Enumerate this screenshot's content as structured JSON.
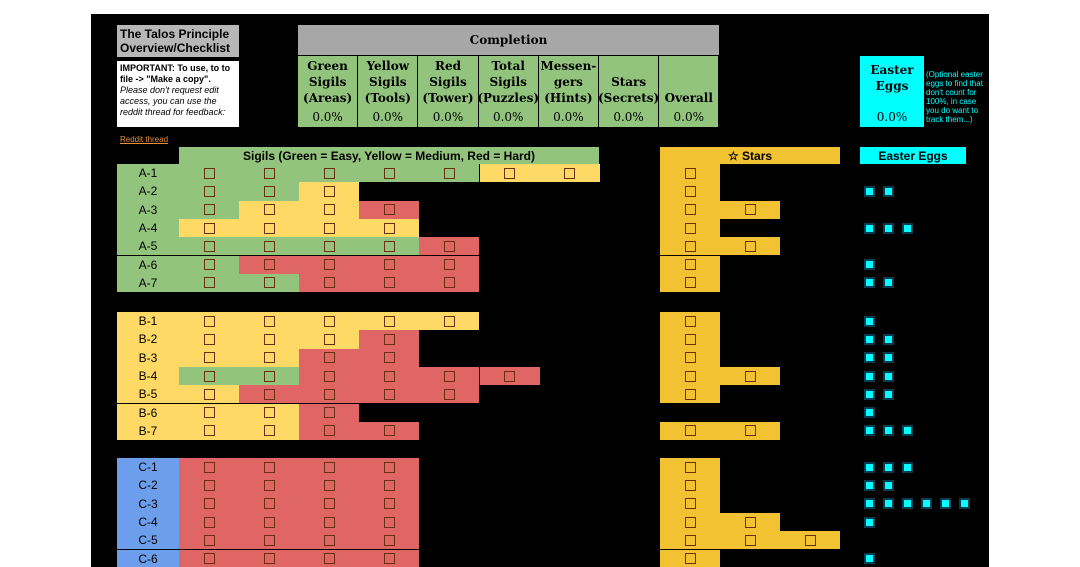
{
  "title": "The Talos Principle Overview/Checklist",
  "note": {
    "bold": "IMPORTANT: To use, to to file -> \"Make a copy\".",
    "italic": "Please don't request edit access, you can use the reddit thread for feedback:"
  },
  "reddit_link": "Reddit thread",
  "completion": {
    "header": "Completion",
    "columns": [
      {
        "line1": "Green",
        "line2": "Sigils",
        "line3": "(Areas)",
        "pct": "0.0%"
      },
      {
        "line1": "Yellow",
        "line2": "Sigils",
        "line3": "(Tools)",
        "pct": "0.0%"
      },
      {
        "line1": "Red",
        "line2": "Sigils",
        "line3": "(Tower)",
        "pct": "0.0%"
      },
      {
        "line1": "Total",
        "line2": "Sigils",
        "line3": "(Puzzles)",
        "pct": "0.0%"
      },
      {
        "line1": "Messen-",
        "line2": "gers",
        "line3": "(Hints)",
        "pct": "0.0%"
      },
      {
        "line1": "",
        "line2": "Stars",
        "line3": "(Secrets)",
        "pct": "0.0%"
      },
      {
        "line1": "",
        "line2": "",
        "line3": "Overall",
        "pct": "0.0%"
      }
    ]
  },
  "easter": {
    "line1": "Easter",
    "line2": "Eggs",
    "pct": "0.0%",
    "note": "(Optional easter eggs to find that don't count for 100%, in case you do want to track them...)"
  },
  "sections": {
    "sigils_header": "Sigils (Green = Easy, Yellow = Medium, Red = Hard)",
    "stars_header": "☆ Stars",
    "eggs_header": "Easter Eggs"
  },
  "colors": {
    "green": "#93c47d",
    "yellow": "#ffd966",
    "red": "#e06666",
    "gold": "#f1c232",
    "cyan": "#00ffff",
    "blue": "#6d9eeb"
  },
  "rows": [
    {
      "label": "A-1",
      "sigils": [
        "G",
        "G",
        "G",
        "G",
        "G",
        "Y",
        "Y"
      ],
      "stars": 1,
      "eggs": 0
    },
    {
      "label": "A-2",
      "sigils": [
        "G",
        "G",
        "Y"
      ],
      "stars": 1,
      "eggs": 2
    },
    {
      "label": "A-3",
      "sigils": [
        "G",
        "Y",
        "Y",
        "R"
      ],
      "stars": 2,
      "eggs": 0
    },
    {
      "label": "A-4",
      "sigils": [
        "Y",
        "Y",
        "Y",
        "Y"
      ],
      "stars": 1,
      "eggs": 3
    },
    {
      "label": "A-5",
      "sigils": [
        "G",
        "G",
        "G",
        "G",
        "R"
      ],
      "stars": 2,
      "eggs": 0
    },
    {
      "label": "A-6",
      "sigils": [
        "G",
        "R",
        "R",
        "R",
        "R"
      ],
      "stars": 1,
      "eggs": 1
    },
    {
      "label": "A-7",
      "sigils": [
        "G",
        "G",
        "R",
        "R",
        "R"
      ],
      "stars": 1,
      "eggs": 2
    },
    {
      "label": "B-1",
      "sigils": [
        "Y",
        "Y",
        "Y",
        "Y",
        "Y"
      ],
      "stars": 1,
      "eggs": 1
    },
    {
      "label": "B-2",
      "sigils": [
        "Y",
        "Y",
        "Y",
        "R"
      ],
      "stars": 1,
      "eggs": 2
    },
    {
      "label": "B-3",
      "sigils": [
        "Y",
        "Y",
        "R",
        "R"
      ],
      "stars": 1,
      "eggs": 2
    },
    {
      "label": "B-4",
      "sigils": [
        "G",
        "G",
        "R",
        "R",
        "R",
        "R"
      ],
      "stars": 2,
      "eggs": 2
    },
    {
      "label": "B-5",
      "sigils": [
        "Y",
        "R",
        "R",
        "R",
        "R"
      ],
      "stars": 1,
      "eggs": 2
    },
    {
      "label": "B-6",
      "sigils": [
        "Y",
        "Y",
        "R"
      ],
      "stars": 0,
      "eggs": 1
    },
    {
      "label": "B-7",
      "sigils": [
        "Y",
        "Y",
        "R",
        "R"
      ],
      "stars": 2,
      "eggs": 3
    },
    {
      "label": "C-1",
      "sigils": [
        "R",
        "R",
        "R",
        "R"
      ],
      "stars": 1,
      "eggs": 3
    },
    {
      "label": "C-2",
      "sigils": [
        "R",
        "R",
        "R",
        "R"
      ],
      "stars": 1,
      "eggs": 2
    },
    {
      "label": "C-3",
      "sigils": [
        "R",
        "R",
        "R",
        "R"
      ],
      "stars": 1,
      "eggs": 6
    },
    {
      "label": "C-4",
      "sigils": [
        "R",
        "R",
        "R",
        "R"
      ],
      "stars": 2,
      "eggs": 1
    },
    {
      "label": "C-5",
      "sigils": [
        "R",
        "R",
        "R",
        "R"
      ],
      "stars": 3,
      "eggs": 0
    },
    {
      "label": "C-6",
      "sigils": [
        "R",
        "R",
        "R",
        "R"
      ],
      "stars": 1,
      "eggs": 1
    }
  ]
}
